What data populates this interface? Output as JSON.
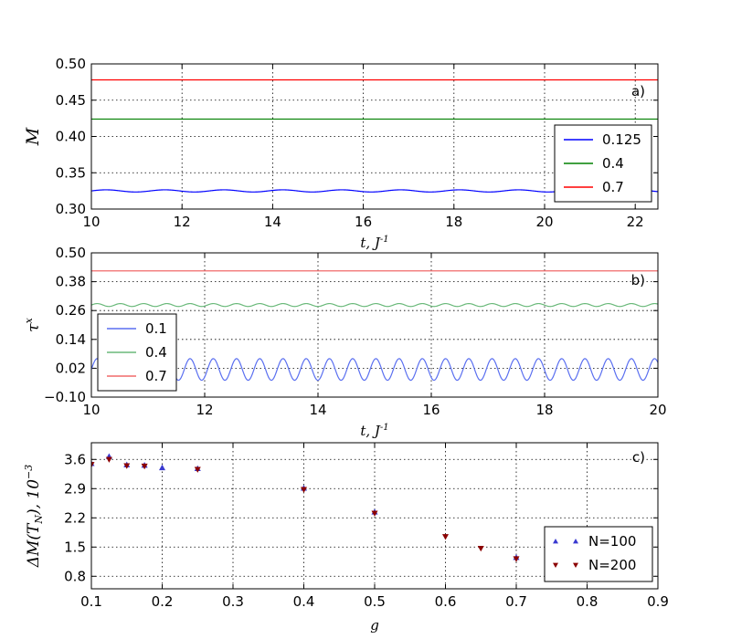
{
  "chart_data": [
    {
      "type": "line",
      "panel_label": "a)",
      "xlabel": "t, J",
      "xlabel_sup": "-1",
      "ylabel": "M",
      "xlim": [
        10,
        22.5
      ],
      "ylim": [
        0.3,
        0.5
      ],
      "xticks": [
        "10",
        "12",
        "14",
        "16",
        "18",
        "20",
        "22"
      ],
      "yticks": [
        "0.30",
        "0.35",
        "0.40",
        "0.45",
        "0.50"
      ],
      "grid": true,
      "legend_position": "center-right",
      "series": [
        {
          "name": "0.125",
          "color": "#0000ff",
          "level": 0.325,
          "amplitude": 0.0015,
          "period": 1.3
        },
        {
          "name": "0.4",
          "color": "#008000",
          "level": 0.424,
          "amplitude": 0.0,
          "period": 1.0
        },
        {
          "name": "0.7",
          "color": "#ff0000",
          "level": 0.478,
          "amplitude": 0.0,
          "period": 1.0
        }
      ]
    },
    {
      "type": "line",
      "panel_label": "b)",
      "xlabel": "t, J",
      "xlabel_sup": "-1",
      "ylabel": "τ",
      "ylabel_sup": "x",
      "xlim": [
        10,
        20
      ],
      "ylim": [
        -0.1,
        0.5
      ],
      "xticks": [
        "10",
        "12",
        "14",
        "16",
        "18",
        "20"
      ],
      "yticks": [
        "−0.10",
        "0.02",
        "0.14",
        "0.26",
        "0.38",
        "0.50"
      ],
      "grid": true,
      "legend_position": "lower-left",
      "series": [
        {
          "name": "0.1",
          "color": "#5a6ff0",
          "level": 0.015,
          "amplitude": 0.045,
          "period": 0.41
        },
        {
          "name": "0.4",
          "color": "#6ab97a",
          "level": 0.283,
          "amplitude": 0.006,
          "period": 0.41
        },
        {
          "name": "0.7",
          "color": "#f06a6a",
          "level": 0.425,
          "amplitude": 0.0,
          "period": 1.0
        }
      ]
    },
    {
      "type": "scatter",
      "panel_label": "c)",
      "xlabel": "g",
      "ylabel": "ΔM(T",
      "ylabel_sub": "N",
      "ylabel_tail": "), 10",
      "ylabel_sup": "−3",
      "xlim": [
        0.1,
        0.9
      ],
      "ylim": [
        0.5,
        4.0
      ],
      "xticks": [
        "0.1",
        "0.2",
        "0.3",
        "0.4",
        "0.5",
        "0.6",
        "0.7",
        "0.8",
        "0.9"
      ],
      "yticks": [
        "0.8",
        "1.5",
        "2.2",
        "2.9",
        "3.6"
      ],
      "grid": true,
      "legend_position": "lower-right",
      "series": [
        {
          "name": "N=100",
          "color": "#3a3ad0",
          "marker": "triangle-up",
          "x": [
            0.1,
            0.125,
            0.15,
            0.175,
            0.2,
            0.25,
            0.4,
            0.5,
            0.7
          ],
          "y": [
            3.5,
            3.67,
            3.47,
            3.46,
            3.4,
            3.38,
            2.91,
            2.34,
            1.25
          ]
        },
        {
          "name": "N=200",
          "color": "#8b0000",
          "marker": "triangle-down",
          "x": [
            0.1,
            0.125,
            0.15,
            0.175,
            0.25,
            0.4,
            0.5,
            0.6,
            0.65,
            0.7
          ],
          "y": [
            3.48,
            3.6,
            3.45,
            3.44,
            3.36,
            2.88,
            2.31,
            1.75,
            1.47,
            1.22
          ]
        }
      ]
    }
  ]
}
